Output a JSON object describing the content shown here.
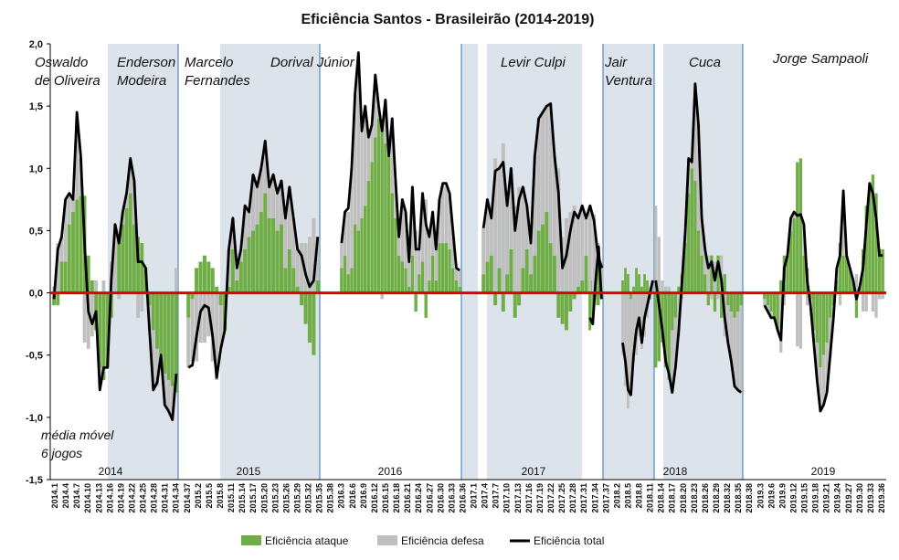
{
  "chart_data": {
    "type": "bar",
    "title": "Eficiência Santos - Brasileirão (2014-2019)",
    "ylim": [
      -1.5,
      2.0
    ],
    "yticks": [
      "2,0",
      "1,5",
      "1,0",
      "0,5",
      "0,0",
      "-0,5",
      "-1,0",
      "-1,5"
    ],
    "ytick_values": [
      2.0,
      1.5,
      1.0,
      0.5,
      0.0,
      -0.5,
      -1.0,
      -1.5
    ],
    "note_lines": [
      "média móvel",
      "6 jogos"
    ],
    "legend": [
      "Eficiência ataque",
      "Eficiência defesa",
      "Eficiência total"
    ],
    "colors": {
      "ataque": "#70ad47",
      "defesa": "#bfbfbf",
      "total": "#000000",
      "zero": "#e00000",
      "shade": "#dde3eb",
      "divider": "#2e75b6"
    },
    "x_labels": [
      "2014.1",
      "2014.4",
      "2014.7",
      "2014.10",
      "2014.13",
      "2014.16",
      "2014.19",
      "2014.22",
      "2014.25",
      "2014.28",
      "2014.31",
      "2014.34",
      "2014.37",
      "2015.2",
      "2015.5",
      "2015.8",
      "2015.11",
      "2015.14",
      "2015.17",
      "2015.20",
      "2015.23",
      "2015.26",
      "2015.29",
      "2015.32",
      "2015.35",
      "2015.38",
      "2016.3",
      "2016.6",
      "2016.9",
      "2016.12",
      "2016.15",
      "2016.18",
      "2016.21",
      "2016.24",
      "2016.27",
      "2016.30",
      "2016.33",
      "2016.36",
      "2017.1",
      "2017.4",
      "2017.7",
      "2017.10",
      "2017.13",
      "2017.16",
      "2017.19",
      "2017.22",
      "2017.25",
      "2017.28",
      "2017.31",
      "2017.34",
      "2017.37",
      "2018.2",
      "2018.5",
      "2018.8",
      "2018.11",
      "2018.14",
      "2018.17",
      "2018.20",
      "2018.23",
      "2018.26",
      "2018.29",
      "2018.32",
      "2018.35",
      "2018.38",
      "2019.3",
      "2019.6",
      "2019.9",
      "2019.12",
      "2019.15",
      "2019.18",
      "2019.21",
      "2019.24",
      "2019.27",
      "2019.30",
      "2019.33",
      "2019.36"
    ],
    "years": [
      "2014",
      "2015",
      "2016",
      "2017",
      "2018",
      "2019"
    ],
    "coaches": [
      {
        "lines": [
          "Oswaldo",
          "de Oliveira"
        ]
      },
      {
        "lines": [
          "Enderson",
          "Modeira"
        ]
      },
      {
        "lines": [
          "Marcelo",
          "Fernandes"
        ]
      },
      {
        "lines": [
          "Dorival Júnior"
        ]
      },
      {
        "lines": [
          "Levir Culpi"
        ]
      },
      {
        "lines": [
          "Jair",
          "Ventura"
        ]
      },
      {
        "lines": [
          "Cuca"
        ]
      },
      {
        "lines": [
          "Jorge Sampaoli"
        ]
      }
    ],
    "total": [
      [
        -0.05,
        0.35,
        0.45,
        0.75,
        0.8,
        0.75,
        1.45,
        1.1,
        0.4,
        -0.15,
        -0.25,
        -0.15,
        -0.78,
        -0.6,
        -0.6,
        0.1,
        0.55,
        0.4,
        0.65,
        0.8,
        1.08,
        0.9,
        0.25,
        0.25,
        0.2,
        -0.3,
        -0.78,
        -0.72,
        -0.5,
        -0.9,
        -0.95,
        -1.02,
        -0.65
      ],
      [
        -0.6,
        -0.58,
        -0.35,
        -0.15,
        -0.1,
        -0.12,
        -0.35,
        -0.68,
        -0.45,
        -0.3,
        0.35,
        0.6,
        0.2,
        0.35,
        0.7,
        0.65,
        0.95,
        0.85,
        1.0,
        1.22,
        0.85,
        0.95,
        0.8,
        0.9,
        0.6,
        0.85,
        0.6,
        0.35,
        0.3,
        0.15,
        0.05,
        0.1,
        0.45
      ],
      [
        0.4,
        0.65,
        0.68,
        1.0,
        1.6,
        1.93,
        1.3,
        1.5,
        1.25,
        1.35,
        1.75,
        1.5,
        1.3,
        1.55,
        1.1,
        1.4,
        0.9,
        0.45,
        0.75,
        0.65,
        0.25,
        0.85,
        0.35,
        0.35,
        0.8,
        0.55,
        0.45,
        0.65,
        0.35,
        0.75,
        0.88,
        0.88,
        0.8,
        0.5,
        0.2,
        0.18
      ],
      [
        0.52,
        0.75,
        0.6,
        0.98,
        1.0,
        1.05,
        0.7,
        1.0,
        0.5,
        0.75,
        0.85,
        0.7,
        0.4,
        1.1,
        1.4,
        1.45,
        1.5,
        1.52,
        1.1,
        0.8,
        0.2,
        0.3,
        0.5,
        0.65,
        0.6,
        0.7,
        0.6,
        0.7,
        0.58,
        0.3,
        0.2
      ],
      [
        -0.2,
        -0.25,
        0.1,
        0.37,
        -0.05
      ],
      [
        -0.4,
        -0.55,
        -0.78,
        -0.82,
        -0.5,
        -0.3,
        -0.2,
        -0.4,
        -0.2,
        -0.1,
        0.0,
        0.1
      ],
      [
        0.1,
        -0.1,
        -0.3,
        -0.55,
        -0.65,
        -0.8,
        -0.6,
        -0.3,
        0.1,
        0.5,
        1.08,
        1.05,
        1.68,
        1.35,
        0.6,
        0.35,
        0.2,
        0.25,
        0.1,
        0.25,
        0.1,
        -0.2,
        -0.4,
        -0.55,
        -0.75,
        -0.78,
        -0.8
      ],
      [
        -0.1,
        -0.15,
        -0.2,
        -0.2,
        -0.3,
        -0.38,
        0.2,
        0.3,
        0.6,
        0.65,
        0.62,
        0.63,
        0.55,
        0.1,
        -0.1,
        -0.4,
        -0.7,
        -0.95,
        -0.9,
        -0.8,
        -0.5,
        -0.2,
        0.2,
        0.3,
        0.82,
        0.3,
        0.2,
        0.1,
        -0.05,
        0.05,
        0.2,
        0.55,
        0.88,
        0.8,
        0.6,
        0.3,
        0.3
      ]
    ],
    "ataque": [
      [
        -0.1,
        -0.1,
        0.25,
        0.25,
        0.55,
        0.65,
        0.75,
        0.78,
        0.78,
        0.3,
        0.1,
        -0.3,
        -0.6,
        -0.7,
        -0.6,
        -0.2,
        0.0,
        0.45,
        0.55,
        0.68,
        0.8,
        0.55,
        0.45,
        0.4,
        0.2,
        -0.1,
        -0.3,
        -0.45,
        -0.5,
        -0.65,
        -0.7,
        -0.75,
        -0.8
      ],
      [
        -0.2,
        -0.05,
        0.2,
        0.25,
        0.3,
        0.25,
        0.2,
        0.05,
        -0.1,
        -0.3,
        0.05,
        0.35,
        0.1,
        0.25,
        0.35,
        0.45,
        0.5,
        0.55,
        0.65,
        0.8,
        0.6,
        0.6,
        0.5,
        0.55,
        0.2,
        0.35,
        0.2,
        0.05,
        -0.1,
        -0.25,
        -0.4,
        -0.5,
        0.1
      ],
      [
        0.2,
        0.3,
        0.15,
        0.2,
        0.55,
        0.5,
        0.6,
        0.7,
        0.9,
        1.05,
        1.25,
        1.4,
        1.35,
        1.2,
        1.1,
        0.8,
        0.6,
        0.3,
        0.25,
        0.2,
        0.05,
        0.3,
        -0.15,
        0.15,
        0.25,
        -0.2,
        0.1,
        0.3,
        0.1,
        0.4,
        0.4,
        0.4,
        0.35,
        0.2,
        0.1,
        0.05
      ],
      [
        0.15,
        0.25,
        0.3,
        -0.1,
        0.2,
        -0.15,
        0.15,
        0.35,
        -0.2,
        -0.1,
        0.2,
        0.35,
        0.15,
        0.3,
        0.5,
        0.55,
        0.65,
        0.4,
        0.3,
        -0.2,
        -0.25,
        -0.3,
        -0.15,
        -0.05,
        0.05,
        0.1,
        0.3,
        0.1,
        -0.05,
        -0.1,
        0.0
      ],
      [
        -0.3,
        -0.25,
        0.0,
        0.2,
        0.0
      ],
      [
        0.1,
        0.2,
        0.15,
        -0.05,
        0.05,
        0.2,
        0.15,
        0.05,
        0.15,
        0.1,
        -0.05,
        0.0
      ],
      [
        -0.6,
        -0.55,
        -0.4,
        -0.6,
        -0.7,
        -0.3,
        -0.2,
        0.05,
        0.15,
        0.4,
        0.8,
        1.0,
        0.9,
        0.5,
        0.3,
        0.15,
        -0.1,
        0.3,
        -0.15,
        0.3,
        -0.2,
        0.15,
        -0.1,
        -0.15,
        -0.2,
        -0.15,
        -0.1
      ],
      [
        -0.05,
        -0.1,
        -0.15,
        -0.2,
        -0.3,
        0.1,
        0.3,
        0.3,
        0.5,
        0.6,
        1.05,
        1.08,
        0.3,
        0.2,
        -0.05,
        -0.3,
        -0.4,
        -0.6,
        -0.5,
        -0.4,
        -0.2,
        -0.1,
        0.1,
        0.4,
        0.3,
        0.3,
        0.2,
        0.1,
        -0.2,
        0.05,
        0.35,
        0.7,
        0.85,
        0.95,
        0.8,
        0.35,
        0.35
      ]
    ],
    "defesa": [
      [
        0.05,
        0.4,
        0.2,
        0.5,
        0.25,
        0.1,
        0.65,
        0.3,
        -0.4,
        -0.45,
        -0.35,
        0.1,
        -0.15,
        0.1,
        0.0,
        0.25,
        0.55,
        -0.05,
        0.1,
        0.1,
        0.25,
        0.35,
        -0.2,
        -0.15,
        0.0,
        -0.2,
        -0.45,
        -0.3,
        0.0,
        -0.25,
        -0.25,
        -0.25,
        0.2
      ],
      [
        -0.4,
        -0.5,
        -0.55,
        -0.4,
        -0.4,
        -0.35,
        -0.55,
        -0.7,
        -0.35,
        0.0,
        0.3,
        0.25,
        0.1,
        0.1,
        0.35,
        0.2,
        0.45,
        0.3,
        0.35,
        0.42,
        0.25,
        0.35,
        0.3,
        0.35,
        0.4,
        0.5,
        0.4,
        0.3,
        0.4,
        0.4,
        0.45,
        0.6,
        0.35
      ],
      [
        0.2,
        0.35,
        0.5,
        0.8,
        1.05,
        1.4,
        0.7,
        0.8,
        0.35,
        0.3,
        0.5,
        0.1,
        -0.05,
        0.35,
        0.0,
        0.6,
        0.3,
        0.15,
        0.5,
        0.45,
        0.2,
        0.55,
        0.5,
        0.2,
        0.55,
        0.75,
        0.35,
        0.35,
        0.25,
        0.35,
        0.48,
        0.48,
        0.45,
        0.3,
        0.1,
        0.13
      ],
      [
        0.37,
        0.5,
        0.3,
        1.08,
        0.8,
        1.2,
        0.55,
        0.65,
        0.7,
        0.85,
        0.65,
        0.35,
        0.25,
        0.8,
        0.9,
        0.9,
        0.85,
        1.12,
        0.8,
        1.0,
        0.45,
        0.6,
        0.65,
        0.7,
        0.55,
        0.6,
        0.3,
        0.6,
        0.63,
        0.4,
        0.2
      ],
      [
        0.1,
        0.0,
        0.1,
        0.17,
        -0.05
      ],
      [
        -0.5,
        -0.75,
        -0.93,
        -0.77,
        -0.55,
        -0.5,
        -0.35,
        -0.45,
        -0.35,
        -0.2,
        0.05,
        0.1
      ],
      [
        0.7,
        0.45,
        0.1,
        0.05,
        0.05,
        -0.5,
        -0.4,
        -0.35,
        -0.05,
        0.1,
        0.28,
        0.05,
        0.78,
        0.85,
        0.3,
        0.2,
        0.3,
        -0.05,
        0.25,
        -0.05,
        0.3,
        -0.35,
        -0.3,
        -0.4,
        -0.55,
        -0.63,
        -0.7
      ],
      [
        -0.05,
        -0.05,
        -0.05,
        0.0,
        0.0,
        -0.48,
        -0.1,
        0.0,
        0.1,
        0.05,
        -0.43,
        -0.45,
        0.25,
        -0.1,
        -0.05,
        -0.1,
        -0.3,
        -0.35,
        -0.4,
        -0.4,
        -0.3,
        -0.1,
        0.1,
        -0.1,
        0.52,
        0.0,
        0.0,
        0.0,
        0.15,
        0.0,
        -0.15,
        -0.15,
        0.03,
        -0.15,
        -0.2,
        -0.05,
        -0.05
      ]
    ]
  }
}
